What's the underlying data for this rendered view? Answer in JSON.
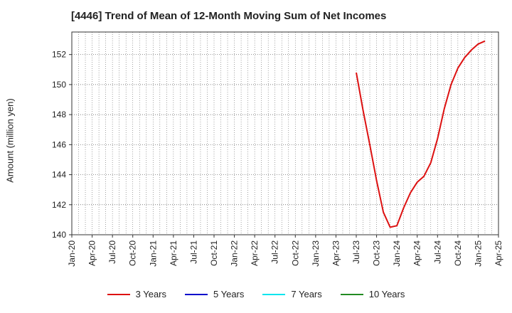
{
  "chart_data": {
    "type": "line",
    "title": "[4446]  Trend of Mean of 12-Month Moving Sum of Net Incomes",
    "xlabel": "",
    "ylabel": "Amount (million yen)",
    "ylim": [
      140,
      153.5
    ],
    "yticks": [
      140,
      142,
      144,
      146,
      148,
      150,
      152
    ],
    "xtick_labels": [
      "Jan-20",
      "Apr-20",
      "Jul-20",
      "Oct-20",
      "Jan-21",
      "Apr-21",
      "Jul-21",
      "Oct-21",
      "Jan-22",
      "Apr-22",
      "Jul-22",
      "Oct-22",
      "Jan-23",
      "Apr-23",
      "Jul-23",
      "Oct-23",
      "Jan-24",
      "Apr-24",
      "Jul-24",
      "Oct-24",
      "Jan-25",
      "Apr-25"
    ],
    "x_range_months": [
      0,
      63
    ],
    "grid": true,
    "legend_position": "bottom",
    "series": [
      {
        "name": "3 Years",
        "color": "#dd1111",
        "x": [
          42,
          43,
          44,
          45,
          46,
          47,
          48,
          49,
          50,
          51,
          52,
          53,
          54,
          55,
          56,
          57,
          58,
          59,
          60,
          61
        ],
        "values": [
          150.8,
          148.3,
          146.0,
          143.6,
          141.5,
          140.5,
          140.6,
          141.8,
          142.8,
          143.5,
          143.9,
          144.8,
          146.4,
          148.4,
          150.0,
          151.1,
          151.8,
          152.3,
          152.7,
          152.9
        ]
      },
      {
        "name": "5 Years",
        "color": "#0000cc",
        "x": [],
        "values": []
      },
      {
        "name": "7 Years",
        "color": "#00e5ee",
        "x": [],
        "values": []
      },
      {
        "name": "10 Years",
        "color": "#228b22",
        "x": [],
        "values": []
      }
    ]
  }
}
